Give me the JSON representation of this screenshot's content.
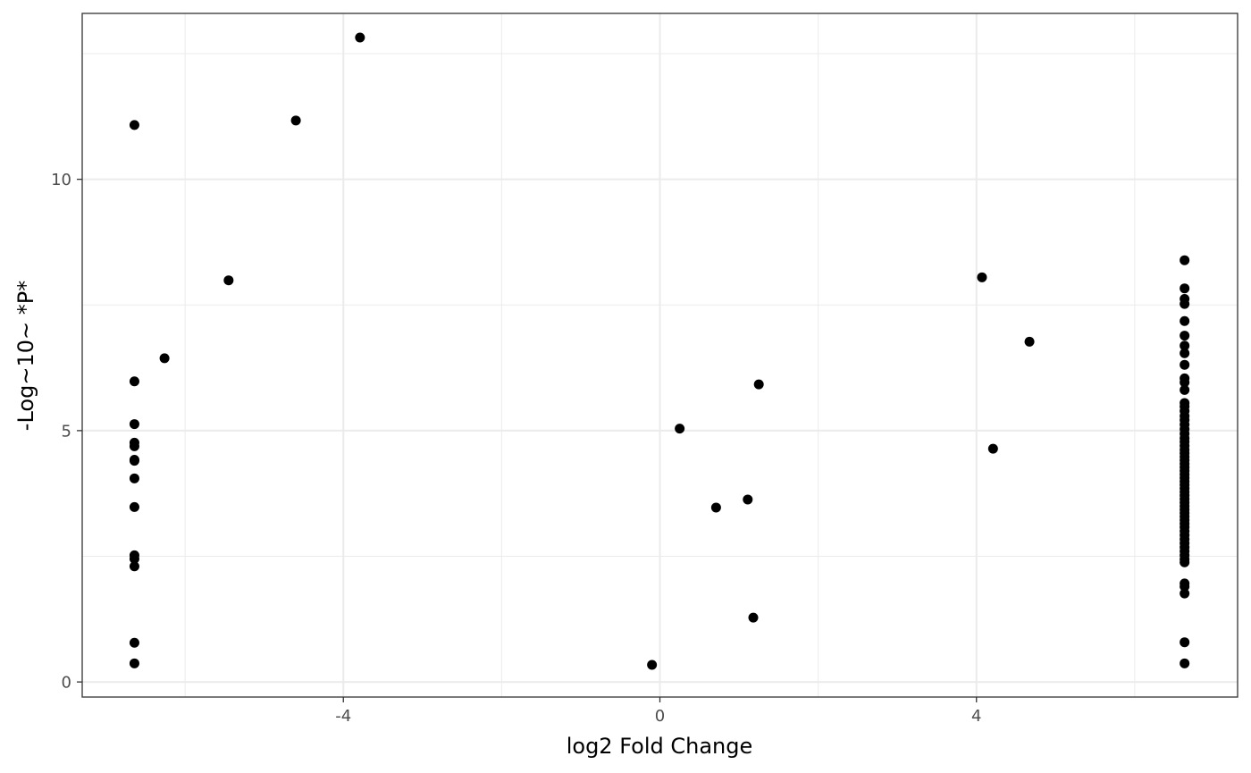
{
  "chart_data": {
    "type": "scatter",
    "xlabel": "log2 Fold Change",
    "ylabel": "-Log~10~ *P*",
    "xlim": [
      -7.3,
      7.3
    ],
    "ylim": [
      -0.3,
      13.3
    ],
    "x_major_ticks": [
      -4,
      0,
      4
    ],
    "x_tick_labels": [
      "-4",
      "0",
      "4"
    ],
    "x_minor_ticks": [
      -6,
      -2,
      2,
      6
    ],
    "y_major_ticks": [
      0,
      5,
      10
    ],
    "y_tick_labels": [
      "0",
      "5",
      "10"
    ],
    "y_minor_ticks": [
      2.5,
      7.5,
      12.5
    ],
    "grid": true,
    "legend": "none",
    "colors": {
      "points": "#000000",
      "grid": "#ebebeb",
      "panel_border": "#333333",
      "tick_label": "#4d4d4d"
    },
    "points": [
      [
        -6.64,
        11.08
      ],
      [
        -6.64,
        5.98
      ],
      [
        -6.64,
        5.13
      ],
      [
        -6.64,
        4.76
      ],
      [
        -6.64,
        4.69
      ],
      [
        -6.64,
        4.42
      ],
      [
        -6.64,
        4.4
      ],
      [
        -6.64,
        4.05
      ],
      [
        -6.64,
        3.48
      ],
      [
        -6.64,
        2.52
      ],
      [
        -6.64,
        2.45
      ],
      [
        -6.64,
        2.3
      ],
      [
        -6.64,
        0.78
      ],
      [
        -6.64,
        0.37
      ],
      [
        -6.26,
        6.44
      ],
      [
        -5.45,
        7.99
      ],
      [
        -4.6,
        11.17
      ],
      [
        -3.79,
        12.82
      ],
      [
        -0.1,
        0.34
      ],
      [
        0.25,
        5.04
      ],
      [
        0.71,
        3.47
      ],
      [
        1.11,
        3.63
      ],
      [
        1.18,
        1.28
      ],
      [
        1.25,
        5.92
      ],
      [
        4.07,
        8.05
      ],
      [
        4.21,
        4.64
      ],
      [
        4.67,
        6.77
      ],
      [
        6.63,
        8.39
      ],
      [
        6.63,
        7.83
      ],
      [
        6.63,
        7.62
      ],
      [
        6.63,
        7.52
      ],
      [
        6.63,
        7.18
      ],
      [
        6.63,
        6.89
      ],
      [
        6.63,
        6.69
      ],
      [
        6.63,
        6.54
      ],
      [
        6.63,
        6.31
      ],
      [
        6.63,
        6.04
      ],
      [
        6.63,
        5.96
      ],
      [
        6.63,
        5.81
      ],
      [
        6.63,
        5.55
      ],
      [
        6.63,
        5.48
      ],
      [
        6.63,
        5.39
      ],
      [
        6.63,
        5.29
      ],
      [
        6.63,
        5.21
      ],
      [
        6.63,
        5.12
      ],
      [
        6.63,
        5.03
      ],
      [
        6.63,
        4.94
      ],
      [
        6.63,
        4.85
      ],
      [
        6.63,
        4.78
      ],
      [
        6.63,
        4.7
      ],
      [
        6.63,
        4.62
      ],
      [
        6.63,
        4.55
      ],
      [
        6.63,
        4.48
      ],
      [
        6.63,
        4.41
      ],
      [
        6.63,
        4.34
      ],
      [
        6.63,
        4.27
      ],
      [
        6.63,
        4.2
      ],
      [
        6.63,
        4.13
      ],
      [
        6.63,
        4.06
      ],
      [
        6.63,
        3.99
      ],
      [
        6.63,
        3.92
      ],
      [
        6.63,
        3.85
      ],
      [
        6.63,
        3.78
      ],
      [
        6.63,
        3.71
      ],
      [
        6.63,
        3.64
      ],
      [
        6.63,
        3.57
      ],
      [
        6.63,
        3.5
      ],
      [
        6.63,
        3.43
      ],
      [
        6.63,
        3.36
      ],
      [
        6.63,
        3.29
      ],
      [
        6.63,
        3.22
      ],
      [
        6.63,
        3.15
      ],
      [
        6.63,
        3.08
      ],
      [
        6.63,
        3.0
      ],
      [
        6.63,
        2.92
      ],
      [
        6.63,
        2.84
      ],
      [
        6.63,
        2.76
      ],
      [
        6.63,
        2.68
      ],
      [
        6.63,
        2.6
      ],
      [
        6.63,
        2.52
      ],
      [
        6.63,
        2.44
      ],
      [
        6.63,
        2.38
      ],
      [
        6.63,
        1.96
      ],
      [
        6.63,
        1.9
      ],
      [
        6.63,
        1.76
      ],
      [
        6.63,
        0.79
      ],
      [
        6.63,
        0.37
      ]
    ]
  }
}
